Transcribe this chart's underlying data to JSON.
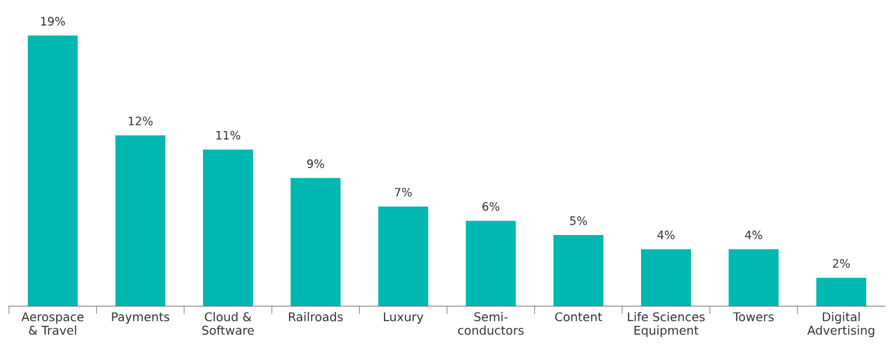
{
  "chart_data": {
    "type": "bar",
    "categories": [
      "Aerospace\n& Travel",
      "Payments",
      "Cloud &\nSoftware",
      "Railroads",
      "Luxury",
      "Semi-\nconductors",
      "Content",
      "Life Sciences\nEquipment",
      "Towers",
      "Digital\nAdvertising"
    ],
    "values": [
      19,
      12,
      11,
      9,
      7,
      6,
      5,
      4,
      4,
      2
    ],
    "value_labels": [
      "19%",
      "12%",
      "11%",
      "9%",
      "7%",
      "6%",
      "5%",
      "4%",
      "4%",
      "2%"
    ],
    "color": "#00b8b0",
    "tick_labels": "x",
    "grid": false,
    "legend": false
  }
}
